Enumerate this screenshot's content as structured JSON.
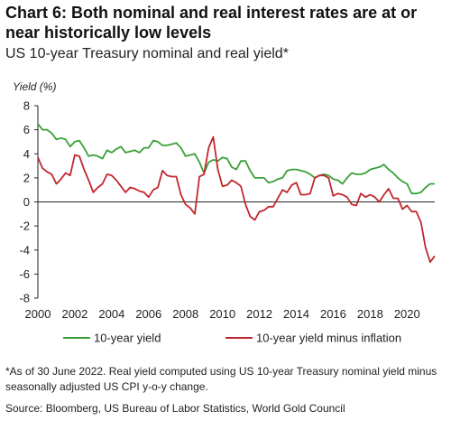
{
  "title": "Chart 6: Both nominal and real interest rates are at or near historically low levels",
  "subtitle": "US 10-year Treasury nominal and real yield*",
  "footnote": "*As of 30 June 2022. Real yield computed using US 10-year Treasury nominal yield minus seasonally adjusted US CPI y-o-y change.",
  "source": "Source: Bloomberg, US Bureau of Labor Statistics, World Gold Council",
  "chart_data": {
    "type": "line",
    "ylabel": "Yield (%)",
    "xlabel": "",
    "ylim": [
      -8,
      8
    ],
    "xlim": [
      2000,
      2021.5
    ],
    "yticks": [
      8,
      6,
      4,
      2,
      0,
      -2,
      -4,
      -6,
      -8
    ],
    "xticks": [
      2000,
      2002,
      2004,
      2006,
      2008,
      2010,
      2012,
      2014,
      2016,
      2018,
      2020
    ],
    "grid": false,
    "zero_line": true,
    "legend_position": "bottom",
    "series": [
      {
        "name": "10-year yield",
        "color": "#3aa038",
        "x": [
          2000.0,
          2000.25,
          2000.5,
          2000.75,
          2001.0,
          2001.25,
          2001.5,
          2001.75,
          2002.0,
          2002.25,
          2002.5,
          2002.75,
          2003.0,
          2003.25,
          2003.5,
          2003.75,
          2004.0,
          2004.25,
          2004.5,
          2004.75,
          2005.0,
          2005.25,
          2005.5,
          2005.75,
          2006.0,
          2006.25,
          2006.5,
          2006.75,
          2007.0,
          2007.25,
          2007.5,
          2007.75,
          2008.0,
          2008.25,
          2008.5,
          2008.75,
          2009.0,
          2009.25,
          2009.5,
          2009.75,
          2010.0,
          2010.25,
          2010.5,
          2010.75,
          2011.0,
          2011.25,
          2011.5,
          2011.75,
          2012.0,
          2012.25,
          2012.5,
          2012.75,
          2013.0,
          2013.25,
          2013.5,
          2013.75,
          2014.0,
          2014.25,
          2014.5,
          2014.75,
          2015.0,
          2015.25,
          2015.5,
          2015.75,
          2016.0,
          2016.25,
          2016.5,
          2016.75,
          2017.0,
          2017.25,
          2017.5,
          2017.75,
          2018.0,
          2018.25,
          2018.5,
          2018.75,
          2019.0,
          2019.25,
          2019.5,
          2019.75,
          2020.0,
          2020.25,
          2020.5,
          2020.75,
          2021.0,
          2021.25,
          2021.5
        ],
        "values": [
          6.5,
          6.0,
          6.0,
          5.7,
          5.2,
          5.3,
          5.2,
          4.6,
          5.0,
          5.1,
          4.5,
          3.8,
          3.9,
          3.8,
          3.6,
          4.3,
          4.1,
          4.4,
          4.6,
          4.1,
          4.2,
          4.3,
          4.1,
          4.5,
          4.5,
          5.1,
          5.0,
          4.7,
          4.7,
          4.8,
          4.9,
          4.5,
          3.8,
          3.9,
          4.0,
          3.3,
          2.4,
          3.3,
          3.5,
          3.4,
          3.7,
          3.6,
          2.9,
          2.7,
          3.4,
          3.4,
          2.6,
          2.0,
          2.0,
          2.0,
          1.6,
          1.7,
          1.9,
          2.0,
          2.6,
          2.7,
          2.7,
          2.6,
          2.5,
          2.3,
          2.0,
          2.2,
          2.3,
          2.2,
          1.9,
          1.8,
          1.5,
          2.0,
          2.4,
          2.3,
          2.3,
          2.4,
          2.7,
          2.8,
          2.9,
          3.1,
          2.7,
          2.4,
          2.0,
          1.7,
          1.5,
          0.7,
          0.7,
          0.8,
          1.2,
          1.5,
          1.5
        ]
      },
      {
        "name": "10-year yield minus inflation",
        "color": "#c1272d",
        "x": [
          2000.0,
          2000.25,
          2000.5,
          2000.75,
          2001.0,
          2001.25,
          2001.5,
          2001.75,
          2002.0,
          2002.25,
          2002.5,
          2002.75,
          2003.0,
          2003.25,
          2003.5,
          2003.75,
          2004.0,
          2004.25,
          2004.5,
          2004.75,
          2005.0,
          2005.25,
          2005.5,
          2005.75,
          2006.0,
          2006.25,
          2006.5,
          2006.75,
          2007.0,
          2007.25,
          2007.5,
          2007.75,
          2008.0,
          2008.25,
          2008.5,
          2008.75,
          2009.0,
          2009.25,
          2009.5,
          2009.75,
          2010.0,
          2010.25,
          2010.5,
          2010.75,
          2011.0,
          2011.25,
          2011.5,
          2011.75,
          2012.0,
          2012.25,
          2012.5,
          2012.75,
          2013.0,
          2013.25,
          2013.5,
          2013.75,
          2014.0,
          2014.25,
          2014.5,
          2014.75,
          2015.0,
          2015.25,
          2015.5,
          2015.75,
          2016.0,
          2016.25,
          2016.5,
          2016.75,
          2017.0,
          2017.25,
          2017.5,
          2017.75,
          2018.0,
          2018.25,
          2018.5,
          2018.75,
          2019.0,
          2019.25,
          2019.5,
          2019.75,
          2020.0,
          2020.25,
          2020.5,
          2020.75,
          2021.0,
          2021.25,
          2021.5
        ],
        "values": [
          3.7,
          2.8,
          2.5,
          2.3,
          1.5,
          1.9,
          2.4,
          2.2,
          3.9,
          3.8,
          2.7,
          1.8,
          0.8,
          1.2,
          1.5,
          2.3,
          2.2,
          1.8,
          1.3,
          0.8,
          1.2,
          1.1,
          0.9,
          0.8,
          0.4,
          1.0,
          1.2,
          2.6,
          2.2,
          2.1,
          2.1,
          0.6,
          -0.2,
          -0.5,
          -1.0,
          2.1,
          2.3,
          4.5,
          5.4,
          2.7,
          1.3,
          1.4,
          1.8,
          1.6,
          1.3,
          -0.2,
          -1.2,
          -1.5,
          -0.8,
          -0.7,
          -0.4,
          -0.4,
          0.3,
          1.0,
          0.8,
          1.4,
          1.6,
          0.6,
          0.6,
          0.7,
          2.0,
          2.2,
          2.2,
          2.0,
          0.5,
          0.7,
          0.6,
          0.4,
          -0.2,
          -0.3,
          0.7,
          0.4,
          0.6,
          0.4,
          0.0,
          0.6,
          1.1,
          0.3,
          0.3,
          -0.6,
          -0.3,
          -0.8,
          -0.8,
          -1.7,
          -3.8,
          -5.0,
          -4.5
        ]
      }
    ]
  }
}
